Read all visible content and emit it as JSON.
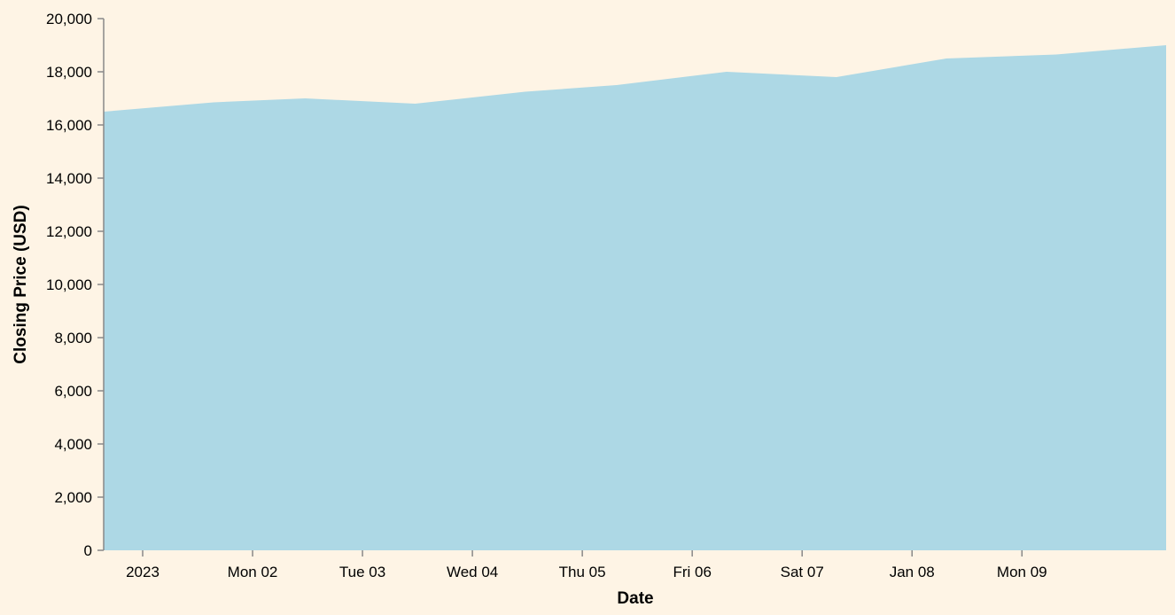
{
  "chart_data": {
    "type": "area",
    "xlabel": "Date",
    "ylabel": "Closing Price (USD)",
    "ylim": [
      0,
      20000
    ],
    "grid": false,
    "colors": {
      "background": "#fef4e5",
      "area": "#add8e5",
      "axis": "#888888"
    },
    "x_ticks": [
      "2023",
      "Mon 02",
      "Tue 03",
      "Wed 04",
      "Thu 05",
      "Fri 06",
      "Sat 07",
      "Jan 08",
      "Mon 09"
    ],
    "y_ticks": [
      "0",
      "2,000",
      "4,000",
      "6,000",
      "8,000",
      "10,000",
      "12,000",
      "14,000",
      "16,000",
      "18,000",
      "20,000"
    ],
    "series": [
      {
        "x": [
          "2023-01-01 00:00",
          "2023-01-02 00:00",
          "2023-01-02 20:00",
          "2023-01-03 20:00",
          "2023-01-04 20:00",
          "2023-01-05 16:00",
          "2023-01-06 16:00",
          "2023-01-07 16:00",
          "2023-01-08 16:00",
          "2023-01-09 16:00",
          "2023-01-10 16:00"
        ],
        "values": [
          16500,
          16850,
          17000,
          16800,
          17250,
          17500,
          18000,
          17800,
          18500,
          18650,
          19000
        ]
      }
    ]
  }
}
